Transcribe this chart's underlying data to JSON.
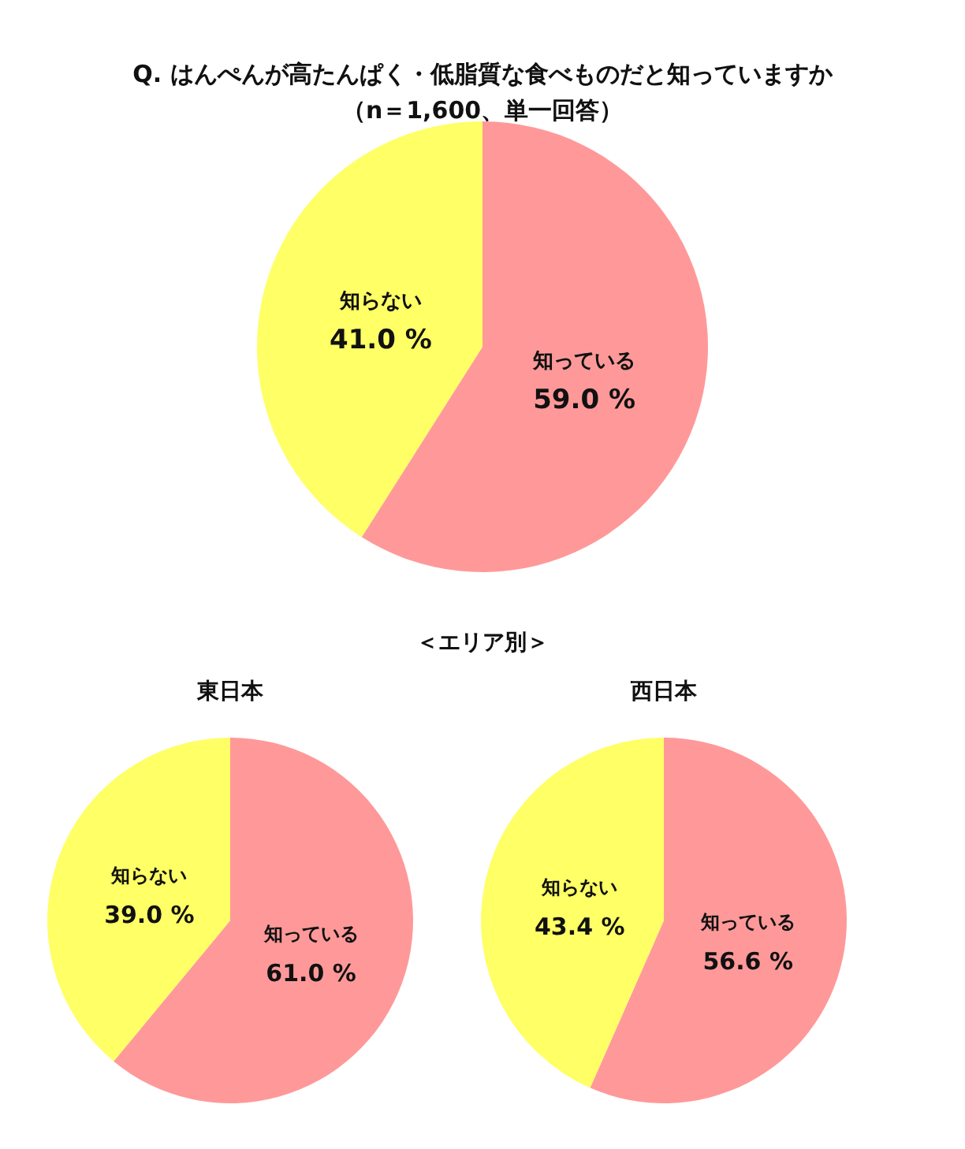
{
  "chart_data": [
    {
      "type": "pie",
      "title": "Q. はんぺんが高たんぱく・低脂質な食べものだと知っていますか",
      "subtitle": "（n＝1,600、単一回答）",
      "categories": [
        "知っている",
        "知らない"
      ],
      "values": [
        59.0,
        41.0
      ],
      "colors": [
        "#ff9999",
        "#ffff66"
      ],
      "value_labels": [
        "59.0 %",
        "41.0 %"
      ]
    },
    {
      "type": "pie",
      "title": "東日本",
      "annotations": [
        "＜エリア別＞"
      ],
      "categories": [
        "知っている",
        "知らない"
      ],
      "values": [
        61.0,
        39.0
      ],
      "colors": [
        "#ff9999",
        "#ffff66"
      ],
      "value_labels": [
        "61.0 %",
        "39.0 %"
      ]
    },
    {
      "type": "pie",
      "title": "西日本",
      "categories": [
        "知っている",
        "知らない"
      ],
      "values": [
        56.6,
        43.4
      ],
      "colors": [
        "#ff9999",
        "#ffff66"
      ],
      "value_labels": [
        "56.6 %",
        "43.4 %"
      ]
    }
  ]
}
